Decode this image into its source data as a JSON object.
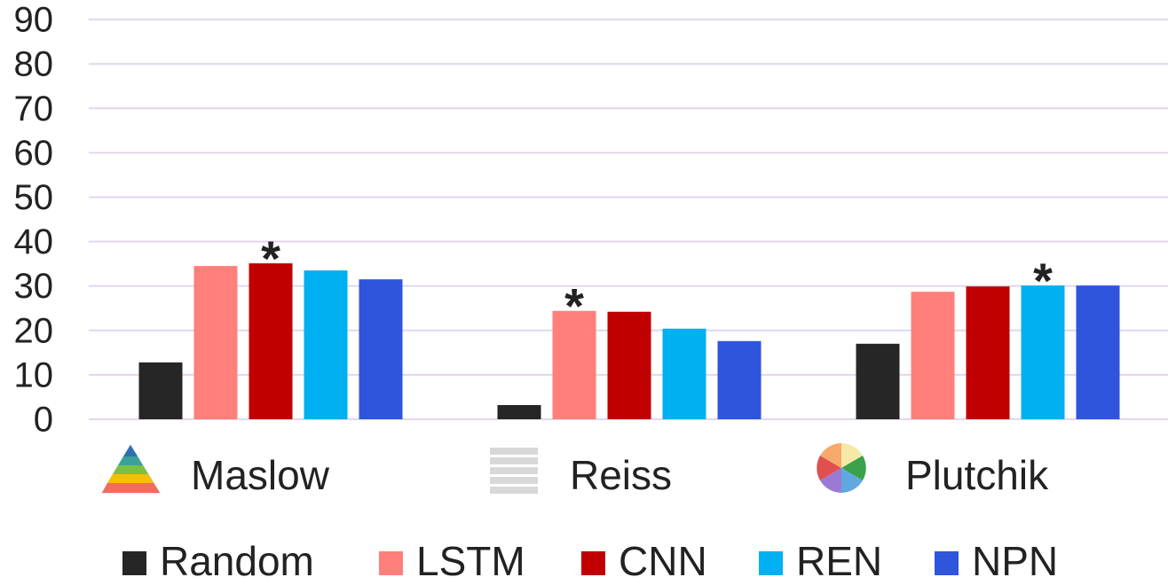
{
  "chart_data": {
    "type": "bar",
    "categories": [
      "Maslow",
      "Reiss",
      "Plutchik"
    ],
    "series": [
      {
        "name": "Random",
        "color": "#262626",
        "values": [
          12.8,
          3.2,
          17.0
        ]
      },
      {
        "name": "LSTM",
        "color": "#ff7f7a",
        "values": [
          34.5,
          24.4,
          28.7
        ]
      },
      {
        "name": "CNN",
        "color": "#c00000",
        "values": [
          35.1,
          24.2,
          29.9
        ]
      },
      {
        "name": "REN",
        "color": "#00b0f0",
        "values": [
          33.5,
          20.4,
          30.1
        ]
      },
      {
        "name": "NPN",
        "color": "#2e55dc",
        "values": [
          31.5,
          17.6,
          30.1
        ]
      }
    ],
    "ylim": [
      0,
      90
    ],
    "yticks": [
      0,
      10,
      20,
      30,
      40,
      50,
      60,
      70,
      80,
      90
    ],
    "grid": true,
    "legend": "bottom",
    "annotations": [
      {
        "text": "*",
        "category": 0,
        "series": 2
      },
      {
        "text": "*",
        "category": 1,
        "series": 1
      },
      {
        "text": "*",
        "category": 2,
        "series": 3
      }
    ]
  }
}
